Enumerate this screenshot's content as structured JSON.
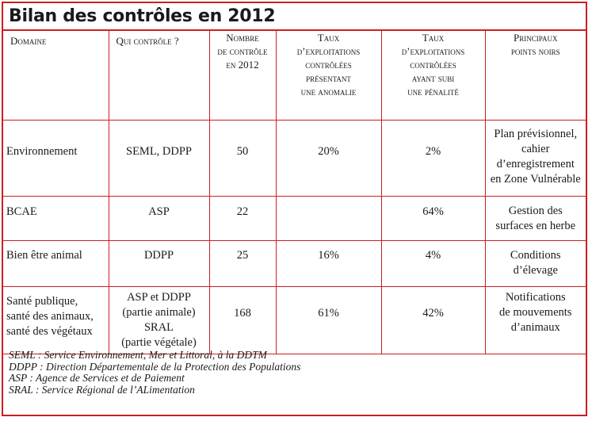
{
  "title": "Bilan des contrôles en 2012",
  "colors": {
    "border": "#cc1f1f",
    "text": "#1a1a1a"
  },
  "headers": {
    "domaine": "Domaine",
    "qui": "Qui contrôle ?",
    "nombre": [
      "Nombre",
      "de contrôle",
      "en 2012"
    ],
    "taux_anomalie": [
      "Taux",
      "d’exploitations",
      "contrôlées",
      "présentant",
      "une anomalie"
    ],
    "taux_penalite": [
      "Taux",
      "d’exploitations",
      "contrôlées",
      "ayant subi",
      "une pénalité"
    ],
    "points_noirs": [
      "Principaux",
      "points noirs"
    ]
  },
  "rows": [
    {
      "domaine": [
        "Environnement"
      ],
      "qui": [
        "SEML, DDPP"
      ],
      "nombre": "50",
      "taux_anomalie": "20%",
      "taux_penalite": "2%",
      "points_noirs": [
        "Plan prévisionnel,",
        "cahier",
        "d’enregistrement",
        "en Zone Vulnérable"
      ]
    },
    {
      "domaine": [
        "BCAE"
      ],
      "qui": [
        "ASP"
      ],
      "nombre": "22",
      "taux_anomalie": "",
      "taux_penalite": "64%",
      "points_noirs": [
        "Gestion des",
        "surfaces en herbe"
      ]
    },
    {
      "domaine": [
        "Bien être animal"
      ],
      "qui": [
        "DDPP"
      ],
      "nombre": "25",
      "taux_anomalie": "16%",
      "taux_penalite": "4%",
      "points_noirs": [
        "Conditions",
        "d’élevage"
      ]
    },
    {
      "domaine": [
        "Santé publique,",
        "santé des animaux,",
        "santé des végétaux"
      ],
      "qui": [
        "ASP et DDPP",
        "(partie animale)",
        "SRAL",
        "(partie végétale)"
      ],
      "nombre": "168",
      "taux_anomalie": "61%",
      "taux_penalite": "42%",
      "points_noirs": [
        "Notifications",
        "de mouvements",
        "d’animaux"
      ]
    }
  ],
  "footnotes": [
    "SEML : Service Environnement, Mer et Littoral, à la DDTM",
    "DDPP : Direction Départementale de la Protection des Populations",
    "ASP : Agence de Services et de Paiement",
    "SRAL : Service Régional de l’ALimentation"
  ]
}
